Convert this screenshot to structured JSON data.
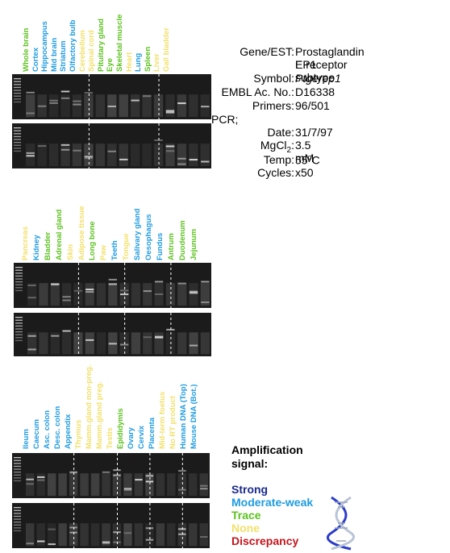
{
  "colors": {
    "strong": "#1a2a8c",
    "moderate_weak": "#1e9be0",
    "trace": "#5cc21e",
    "none": "#f2e06a",
    "discrepancy": "#c4151c"
  },
  "panels": [
    {
      "lanes": [
        {
          "label": "Whole brain",
          "level": "trace"
        },
        {
          "label": "Cortex",
          "level": "moderate_weak"
        },
        {
          "label": "Hippocampus",
          "level": "moderate_weak"
        },
        {
          "label": "Mid brain",
          "level": "moderate_weak"
        },
        {
          "label": "Striatum",
          "level": "moderate_weak"
        },
        {
          "label": "Olfactory bulb",
          "level": "moderate_weak"
        },
        {
          "label": "Cerebellum",
          "level": "none"
        },
        {
          "label": "Spinal cord",
          "level": "none"
        },
        {
          "label": "Pituitary gland",
          "level": "trace"
        },
        {
          "label": "Eye",
          "level": "trace"
        },
        {
          "label": "Skeletal muscle",
          "level": "trace"
        },
        {
          "label": "Heart",
          "level": "none"
        },
        {
          "label": "Lung",
          "level": "moderate_weak"
        },
        {
          "label": "Spleen",
          "level": "trace"
        },
        {
          "label": "Liver",
          "level": "none"
        },
        {
          "label": "Gall bladder",
          "level": "none"
        }
      ]
    },
    {
      "lanes": [
        {
          "label": "Pancreas",
          "level": "none"
        },
        {
          "label": "Kidney",
          "level": "moderate_weak"
        },
        {
          "label": "Bladder",
          "level": "trace"
        },
        {
          "label": "Adrenal gland",
          "level": "trace"
        },
        {
          "label": "Skin",
          "level": "none"
        },
        {
          "label": "Adipose tissue",
          "level": "none"
        },
        {
          "label": "Long bone",
          "level": "trace"
        },
        {
          "label": "Paw",
          "level": "none"
        },
        {
          "label": "Teeth",
          "level": "moderate_weak"
        },
        {
          "label": "Tongue",
          "level": "none"
        },
        {
          "label": "Salivary gland",
          "level": "moderate_weak"
        },
        {
          "label": "Oesophagus",
          "level": "moderate_weak"
        },
        {
          "label": "Fundus",
          "level": "moderate_weak"
        },
        {
          "label": "Antrum",
          "level": "trace"
        },
        {
          "label": "Duodenum",
          "level": "trace"
        },
        {
          "label": "Jejunum",
          "level": "trace"
        }
      ]
    },
    {
      "lanes": [
        {
          "label": "Ileum",
          "level": "moderate_weak"
        },
        {
          "label": "Caecum",
          "level": "moderate_weak"
        },
        {
          "label": "Asc. colon",
          "level": "moderate_weak"
        },
        {
          "label": "Desc. colon",
          "level": "moderate_weak"
        },
        {
          "label": "Appendix",
          "level": "moderate_weak"
        },
        {
          "label": "Thymus",
          "level": "none"
        },
        {
          "label": "Mamm.gland non-preg.",
          "level": "none"
        },
        {
          "label": "Mamm.gland preg.",
          "level": "none"
        },
        {
          "label": "Testis",
          "level": "none"
        },
        {
          "label": "Epididymis",
          "level": "trace"
        },
        {
          "label": "Ovary",
          "level": "moderate_weak"
        },
        {
          "label": "Cervix",
          "level": "moderate_weak"
        },
        {
          "label": "Placenta",
          "level": "moderate_weak"
        },
        {
          "label": "Mid-term foetus",
          "level": "none"
        },
        {
          "label": "No RT product",
          "level": "none"
        },
        {
          "label": "Human DNA (Top)",
          "level": "moderate_weak"
        },
        {
          "label": "Mouse DNA (Bot.)",
          "level": "moderate_weak"
        }
      ]
    }
  ],
  "info": {
    "gene_key": "Gene/EST:",
    "gene_value": "Prostaglandin E receptor",
    "gene_value2": "EP1 subtype",
    "symbol_key": "Symbol:",
    "symbol_value": "Ptgerep1",
    "embl_key": "EMBL Ac. No.:",
    "embl_value": "D16338",
    "primers_key": "Primers:",
    "primers_value": "96/501",
    "pcr_key": "PCR;",
    "date_key": "Date:",
    "date_value": "31/7/97",
    "mgcl_key_main": "MgCl",
    "mgcl_key_sub": "2",
    "mgcl_key_colon": ":",
    "mgcl_value": "3.5 mM",
    "temp_key": "Temp:",
    "temp_value_main": "55",
    "temp_value_sup": "o",
    "temp_value_unit": "C",
    "cycles_key": "Cycles:",
    "cycles_value": "x50"
  },
  "legend": {
    "title_line1": "Amplification",
    "title_line2": "signal:",
    "strong": "Strong",
    "moderate_weak": "Moderate-weak",
    "trace": "Trace",
    "none": "None",
    "discrepancy": "Discrepancy"
  }
}
